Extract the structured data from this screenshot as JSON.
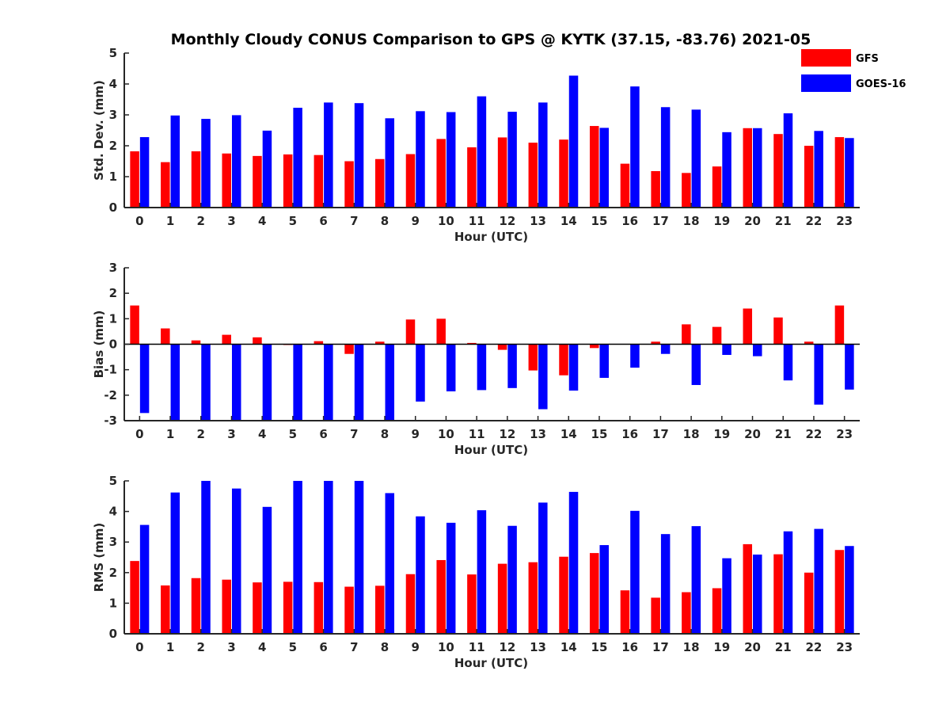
{
  "chart_data": {
    "type": "bar",
    "title": "Monthly Cloudy CONUS Comparison to GPS @ KYTK (37.15, -83.76) 2021-05",
    "categories": [
      "0",
      "1",
      "2",
      "3",
      "4",
      "5",
      "6",
      "7",
      "8",
      "9",
      "10",
      "11",
      "12",
      "13",
      "14",
      "15",
      "16",
      "17",
      "18",
      "19",
      "20",
      "21",
      "22",
      "23"
    ],
    "legend": {
      "placement": "top-right",
      "entries": [
        {
          "name": "GFS",
          "color": "#ff0000"
        },
        {
          "name": "GOES-16",
          "color": "#0000ff"
        }
      ]
    },
    "panels": [
      {
        "id": "std",
        "xlabel": "Hour (UTC)",
        "ylabel": "Std. Dev. (mm)",
        "ylim": [
          0,
          5
        ],
        "yticks": [
          "0",
          "1",
          "2",
          "3",
          "4",
          "5"
        ],
        "series": [
          {
            "name": "GFS",
            "values": [
              1.82,
              1.47,
              1.82,
              1.75,
              1.67,
              1.72,
              1.7,
              1.5,
              1.57,
              1.73,
              2.22,
              1.95,
              2.27,
              2.1,
              2.2,
              2.64,
              1.42,
              1.18,
              1.12,
              1.33,
              2.57,
              2.38,
              2.0,
              2.28
            ]
          },
          {
            "name": "GOES-16",
            "values": [
              2.28,
              2.98,
              2.87,
              2.99,
              2.49,
              3.23,
              3.4,
              3.38,
              2.89,
              3.12,
              3.09,
              3.6,
              3.1,
              3.4,
              4.27,
              2.58,
              3.92,
              3.25,
              3.17,
              2.44,
              2.57,
              3.05,
              2.48,
              2.25
            ]
          }
        ]
      },
      {
        "id": "bias",
        "xlabel": "Hour (UTC)",
        "ylabel": "Bias (mm)",
        "ylim": [
          -3,
          3
        ],
        "yticks": [
          "-3",
          "-2",
          "-1",
          "0",
          "1",
          "2",
          "3"
        ],
        "series": [
          {
            "name": "GFS",
            "values": [
              1.52,
              0.62,
              0.15,
              0.37,
              0.27,
              -0.03,
              0.12,
              -0.38,
              0.1,
              0.97,
              1.0,
              0.05,
              -0.22,
              -1.03,
              -1.22,
              -0.15,
              0.0,
              0.1,
              0.78,
              0.68,
              1.4,
              1.05,
              0.1,
              1.52
            ]
          },
          {
            "name": "GOES-16",
            "values": [
              -2.7,
              -3.0,
              -3.0,
              -3.0,
              -3.0,
              -3.0,
              -3.0,
              -3.0,
              -3.0,
              -2.25,
              -1.85,
              -1.8,
              -1.72,
              -2.55,
              -1.82,
              -1.32,
              -0.92,
              -0.38,
              -1.6,
              -0.42,
              -0.47,
              -1.42,
              -2.37,
              -1.78
            ]
          }
        ]
      },
      {
        "id": "rms",
        "xlabel": "Hour (UTC)",
        "ylabel": "RMS (mm)",
        "ylim": [
          0,
          5
        ],
        "yticks": [
          "0",
          "1",
          "2",
          "3",
          "4",
          "5"
        ],
        "series": [
          {
            "name": "GFS",
            "values": [
              2.38,
              1.58,
              1.82,
              1.77,
              1.68,
              1.7,
              1.69,
              1.54,
              1.57,
              1.95,
              2.41,
              1.94,
              2.29,
              2.34,
              2.52,
              2.64,
              1.42,
              1.18,
              1.36,
              1.49,
              2.93,
              2.6,
              2.0,
              2.74
            ]
          },
          {
            "name": "GOES-16",
            "values": [
              3.56,
              4.62,
              5.0,
              4.75,
              4.15,
              5.0,
              5.0,
              5.0,
              4.6,
              3.84,
              3.63,
              4.04,
              3.53,
              4.29,
              4.64,
              2.9,
              4.02,
              3.26,
              3.52,
              2.47,
              2.59,
              3.35,
              3.43,
              2.87
            ]
          }
        ]
      }
    ]
  }
}
